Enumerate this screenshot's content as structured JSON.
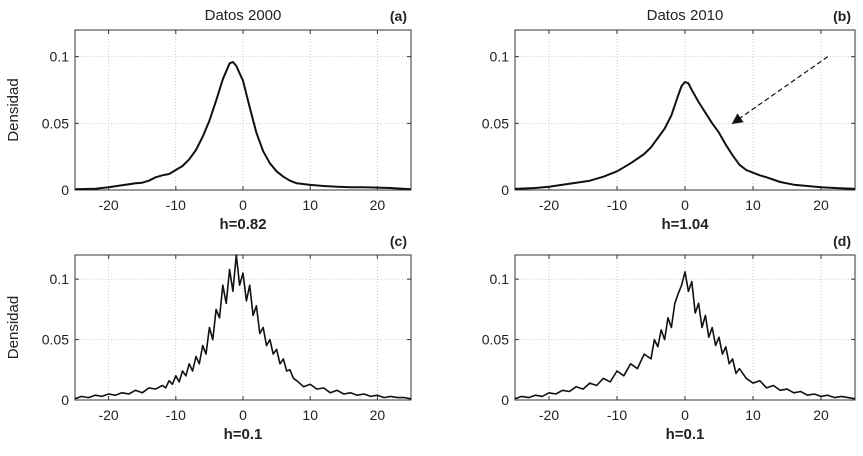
{
  "chart_data": [
    {
      "type": "line",
      "panel": "(a)",
      "title": "Datos 2000",
      "bandwidth_label": "h=0.82",
      "ylabel": "Densidad",
      "xlim": [
        -25,
        25
      ],
      "ylim": [
        0,
        0.12
      ],
      "xticks": [
        -20,
        -10,
        0,
        10,
        20
      ],
      "xtick_labels": [
        "-20",
        "-10",
        "0",
        "10",
        "20"
      ],
      "yticks": [
        0,
        0.05,
        0.1
      ],
      "ytick_labels": [
        "0",
        "0.05",
        "0.1"
      ],
      "grid": true,
      "series": [
        {
          "name": "density",
          "x": [
            -25,
            -22,
            -20,
            -18,
            -16,
            -15,
            -14,
            -13,
            -12,
            -11,
            -10,
            -9,
            -8,
            -7,
            -6,
            -5,
            -4,
            -3,
            -2,
            -1.5,
            -1,
            0,
            1,
            2,
            3,
            4,
            5,
            6,
            7,
            8,
            10,
            12,
            14,
            16,
            18,
            20,
            22,
            25
          ],
          "y": [
            0.0005,
            0.001,
            0.002,
            0.0035,
            0.005,
            0.0055,
            0.007,
            0.0095,
            0.011,
            0.012,
            0.015,
            0.018,
            0.023,
            0.03,
            0.04,
            0.052,
            0.067,
            0.083,
            0.095,
            0.096,
            0.093,
            0.082,
            0.062,
            0.043,
            0.029,
            0.02,
            0.014,
            0.01,
            0.007,
            0.005,
            0.0038,
            0.003,
            0.0025,
            0.002,
            0.002,
            0.0018,
            0.0015,
            0.0005
          ]
        }
      ]
    },
    {
      "type": "line",
      "panel": "(b)",
      "title": "Datos 2010",
      "bandwidth_label": "h=1.04",
      "ylabel": "",
      "xlim": [
        -25,
        25
      ],
      "ylim": [
        0,
        0.12
      ],
      "xticks": [
        -20,
        -10,
        0,
        10,
        20
      ],
      "xtick_labels": [
        "-20",
        "-10",
        "0",
        "10",
        "20"
      ],
      "yticks": [
        0,
        0.05,
        0.1
      ],
      "ytick_labels": [
        "0",
        "0.05",
        "0.1"
      ],
      "grid": true,
      "annotation": "dashed-arrow",
      "annotation_arrow": {
        "from": [
          21,
          0.1
        ],
        "to": [
          7,
          0.05
        ]
      },
      "series": [
        {
          "name": "density",
          "x": [
            -25,
            -22,
            -20,
            -18,
            -16,
            -14,
            -12,
            -10,
            -8,
            -6,
            -5,
            -4,
            -3,
            -2,
            -1,
            -0.5,
            0,
            0.5,
            1,
            2,
            3,
            4,
            5,
            6,
            7,
            8,
            9,
            10,
            11,
            12,
            14,
            16,
            18,
            20,
            22,
            25
          ],
          "y": [
            0.0008,
            0.0015,
            0.0025,
            0.004,
            0.0055,
            0.007,
            0.01,
            0.014,
            0.02,
            0.027,
            0.032,
            0.039,
            0.046,
            0.056,
            0.071,
            0.078,
            0.081,
            0.08,
            0.075,
            0.066,
            0.058,
            0.05,
            0.043,
            0.034,
            0.026,
            0.019,
            0.015,
            0.013,
            0.011,
            0.0095,
            0.006,
            0.004,
            0.003,
            0.002,
            0.0015,
            0.0008
          ]
        }
      ]
    },
    {
      "type": "line",
      "panel": "(c)",
      "title": "",
      "bandwidth_label": "h=0.1",
      "ylabel": "Densidad",
      "xlim": [
        -25,
        25
      ],
      "ylim": [
        0,
        0.12
      ],
      "xticks": [
        -20,
        -10,
        0,
        10,
        20
      ],
      "xtick_labels": [
        "-20",
        "-10",
        "0",
        "10",
        "20"
      ],
      "yticks": [
        0,
        0.05,
        0.1
      ],
      "ytick_labels": [
        "0",
        "0.05",
        "0.1"
      ],
      "grid": true,
      "series": [
        {
          "name": "density",
          "x": [
            -25,
            -24,
            -23,
            -22,
            -21,
            -20,
            -19,
            -18,
            -17,
            -16,
            -15,
            -14,
            -13,
            -12,
            -11.5,
            -11,
            -10.5,
            -10,
            -9.5,
            -9,
            -8.5,
            -8,
            -7.5,
            -7,
            -6.5,
            -6,
            -5.5,
            -5,
            -4.5,
            -4,
            -3.5,
            -3,
            -2.5,
            -2,
            -1.5,
            -1,
            -0.5,
            0,
            0.5,
            1,
            1.5,
            2,
            2.5,
            3,
            3.5,
            4,
            4.5,
            5,
            5.5,
            6,
            6.5,
            7,
            7.5,
            8,
            9,
            10,
            11,
            12,
            13,
            14,
            15,
            16,
            17,
            18,
            19,
            20,
            21,
            22,
            23,
            24,
            25
          ],
          "y": [
            0.001,
            0.003,
            0.002,
            0.004,
            0.003,
            0.005,
            0.004,
            0.006,
            0.005,
            0.008,
            0.006,
            0.01,
            0.009,
            0.012,
            0.01,
            0.016,
            0.013,
            0.02,
            0.015,
            0.024,
            0.02,
            0.03,
            0.024,
            0.036,
            0.03,
            0.045,
            0.038,
            0.06,
            0.05,
            0.075,
            0.068,
            0.095,
            0.08,
            0.108,
            0.09,
            0.12,
            0.095,
            0.105,
            0.082,
            0.095,
            0.07,
            0.078,
            0.055,
            0.06,
            0.045,
            0.05,
            0.038,
            0.042,
            0.03,
            0.034,
            0.024,
            0.025,
            0.018,
            0.016,
            0.011,
            0.013,
            0.009,
            0.01,
            0.006,
            0.008,
            0.005,
            0.006,
            0.004,
            0.005,
            0.003,
            0.004,
            0.002,
            0.003,
            0.002,
            0.002,
            0.001
          ]
        }
      ]
    },
    {
      "type": "line",
      "panel": "(d)",
      "title": "",
      "bandwidth_label": "h=0.1",
      "ylabel": "",
      "xlim": [
        -25,
        25
      ],
      "ylim": [
        0,
        0.12
      ],
      "xticks": [
        -20,
        -10,
        0,
        10,
        20
      ],
      "xtick_labels": [
        "-20",
        "-10",
        "0",
        "10",
        "20"
      ],
      "yticks": [
        0,
        0.05,
        0.1
      ],
      "ytick_labels": [
        "0",
        "0.05",
        "0.1"
      ],
      "grid": true,
      "series": [
        {
          "name": "density",
          "x": [
            -25,
            -24,
            -23,
            -22,
            -21,
            -20,
            -19,
            -18,
            -17,
            -16,
            -15,
            -14,
            -13,
            -12,
            -11,
            -10,
            -9,
            -8,
            -7,
            -6,
            -5,
            -4.5,
            -4,
            -3.5,
            -3,
            -2.5,
            -2,
            -1.5,
            -1,
            -0.5,
            0,
            0.5,
            1,
            1.5,
            2,
            2.5,
            3,
            3.5,
            4,
            4.5,
            5,
            5.5,
            6,
            6.5,
            7,
            7.5,
            8,
            9,
            10,
            11,
            12,
            13,
            14,
            15,
            16,
            17,
            18,
            19,
            20,
            21,
            22,
            23,
            24,
            25
          ],
          "y": [
            0.001,
            0.003,
            0.002,
            0.004,
            0.003,
            0.006,
            0.005,
            0.008,
            0.007,
            0.011,
            0.009,
            0.014,
            0.012,
            0.018,
            0.015,
            0.024,
            0.02,
            0.03,
            0.026,
            0.038,
            0.034,
            0.05,
            0.044,
            0.058,
            0.05,
            0.068,
            0.06,
            0.08,
            0.088,
            0.095,
            0.106,
            0.09,
            0.098,
            0.072,
            0.08,
            0.06,
            0.07,
            0.052,
            0.06,
            0.045,
            0.052,
            0.038,
            0.044,
            0.03,
            0.034,
            0.022,
            0.026,
            0.018,
            0.014,
            0.016,
            0.01,
            0.012,
            0.008,
            0.009,
            0.006,
            0.007,
            0.004,
            0.005,
            0.003,
            0.004,
            0.002,
            0.003,
            0.002,
            0.001
          ]
        }
      ]
    }
  ]
}
